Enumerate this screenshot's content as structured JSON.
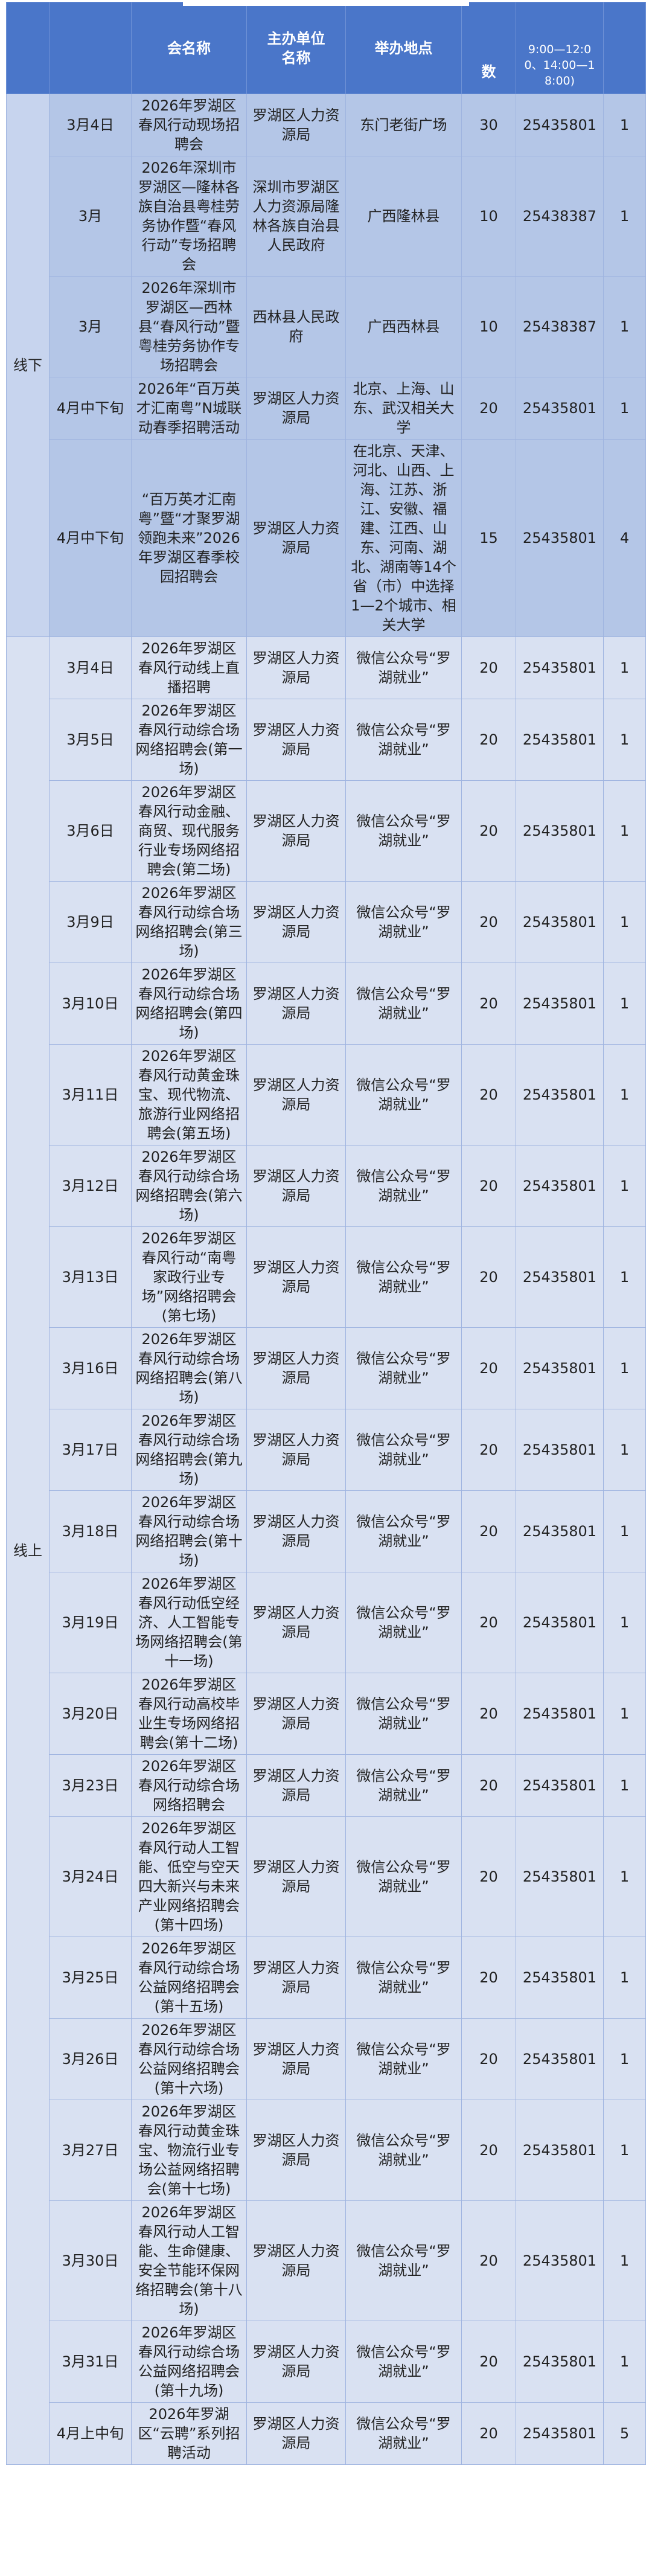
{
  "header": {
    "col_type": "",
    "col_date": "",
    "col_name": "会名称",
    "col_organizer": "主办单位名称",
    "col_location": "举办地点",
    "col_count": "数",
    "col_phone": "9:00—12:00、14:00—18:00)",
    "col_sessions": ""
  },
  "colors": {
    "header": "#4a76c9",
    "offline_bg": "#b4c6e7",
    "online_bg": "#d9e1f2"
  },
  "groups": [
    {
      "type": "线下",
      "rows": [
        {
          "date": "3月4日",
          "name": "2026年罗湖区春风行动现场招聘会",
          "organizer": "罗湖区人力资源局",
          "location": "东门老街广场",
          "count": "30",
          "phone": "25435801",
          "sessions": "1"
        },
        {
          "date": "3月",
          "name": "2026年深圳市罗湖区—隆林各族自治县粤桂劳务协作暨“春风行动”专场招聘会",
          "organizer": "深圳市罗湖区人力资源局隆林各族自治县人民政府",
          "location": "广西隆林县",
          "count": "10",
          "phone": "25438387",
          "sessions": "1"
        },
        {
          "date": "3月",
          "name": "2026年深圳市罗湖区—西林县“春风行动”暨粤桂劳务协作专场招聘会",
          "organizer": "西林县人民政府",
          "location": "广西西林县",
          "count": "10",
          "phone": "25438387",
          "sessions": "1"
        },
        {
          "date": "4月中下旬",
          "name": "2026年“百万英才汇南粤”N城联动春季招聘活动",
          "organizer": "罗湖区人力资源局",
          "location": "北京、上海、山东、武汉相关大学",
          "count": "20",
          "phone": "25435801",
          "sessions": "1"
        },
        {
          "date": "4月中下旬",
          "name": "“百万英才汇南粤”暨“才聚罗湖领跑未来”2026年罗湖区春季校园招聘会",
          "organizer": "罗湖区人力资源局",
          "location": "在北京、天津、河北、山西、上海、江苏、浙江、安徽、福建、江西、山东、河南、湖北、湖南等14个省（市）中选择1—2个城市、相关大学",
          "count": "15",
          "phone": "25435801",
          "sessions": "4"
        }
      ]
    },
    {
      "type": "线上",
      "rows": [
        {
          "date": "3月4日",
          "name": "2026年罗湖区春风行动线上直播招聘",
          "organizer": "罗湖区人力资源局",
          "location": "微信公众号“罗湖就业”",
          "count": "20",
          "phone": "25435801",
          "sessions": "1"
        },
        {
          "date": "3月5日",
          "name": "2026年罗湖区春风行动综合场网络招聘会(第一场)",
          "organizer": "罗湖区人力资源局",
          "location": "微信公众号“罗湖就业”",
          "count": "20",
          "phone": "25435801",
          "sessions": "1"
        },
        {
          "date": "3月6日",
          "name": "2026年罗湖区春风行动金融、商贸、现代服务行业专场网络招聘会(第二场)",
          "organizer": "罗湖区人力资源局",
          "location": "微信公众号“罗湖就业”",
          "count": "20",
          "phone": "25435801",
          "sessions": "1"
        },
        {
          "date": "3月9日",
          "name": "2026年罗湖区春风行动综合场网络招聘会(第三场)",
          "organizer": "罗湖区人力资源局",
          "location": "微信公众号“罗湖就业”",
          "count": "20",
          "phone": "25435801",
          "sessions": "1"
        },
        {
          "date": "3月10日",
          "name": "2026年罗湖区春风行动综合场网络招聘会(第四场)",
          "organizer": "罗湖区人力资源局",
          "location": "微信公众号“罗湖就业”",
          "count": "20",
          "phone": "25435801",
          "sessions": "1"
        },
        {
          "date": "3月11日",
          "name": "2026年罗湖区春风行动黄金珠宝、现代物流、旅游行业网络招聘会(第五场)",
          "organizer": "罗湖区人力资源局",
          "location": "微信公众号“罗湖就业”",
          "count": "20",
          "phone": "25435801",
          "sessions": "1"
        },
        {
          "date": "3月12日",
          "name": "2026年罗湖区春风行动综合场网络招聘会(第六场)",
          "organizer": "罗湖区人力资源局",
          "location": "微信公众号“罗湖就业”",
          "count": "20",
          "phone": "25435801",
          "sessions": "1"
        },
        {
          "date": "3月13日",
          "name": "2026年罗湖区春风行动“南粤家政行业专场”网络招聘会(第七场)",
          "organizer": "罗湖区人力资源局",
          "location": "微信公众号“罗湖就业”",
          "count": "20",
          "phone": "25435801",
          "sessions": "1"
        },
        {
          "date": "3月16日",
          "name": "2026年罗湖区春风行动综合场网络招聘会(第八场)",
          "organizer": "罗湖区人力资源局",
          "location": "微信公众号“罗湖就业”",
          "count": "20",
          "phone": "25435801",
          "sessions": "1"
        },
        {
          "date": "3月17日",
          "name": "2026年罗湖区春风行动综合场网络招聘会(第九场)",
          "organizer": "罗湖区人力资源局",
          "location": "微信公众号“罗湖就业”",
          "count": "20",
          "phone": "25435801",
          "sessions": "1"
        },
        {
          "date": "3月18日",
          "name": "2026年罗湖区春风行动综合场网络招聘会(第十场)",
          "organizer": "罗湖区人力资源局",
          "location": "微信公众号“罗湖就业”",
          "count": "20",
          "phone": "25435801",
          "sessions": "1"
        },
        {
          "date": "3月19日",
          "name": "2026年罗湖区春风行动低空经济、人工智能专场网络招聘会(第十一场)",
          "organizer": "罗湖区人力资源局",
          "location": "微信公众号“罗湖就业”",
          "count": "20",
          "phone": "25435801",
          "sessions": "1"
        },
        {
          "date": "3月20日",
          "name": "2026年罗湖区春风行动高校毕业生专场网络招聘会(第十二场)",
          "organizer": "罗湖区人力资源局",
          "location": "微信公众号“罗湖就业”",
          "count": "20",
          "phone": "25435801",
          "sessions": "1"
        },
        {
          "date": "3月23日",
          "name": "2026年罗湖区春风行动综合场网络招聘会",
          "organizer": "罗湖区人力资源局",
          "location": "微信公众号“罗湖就业”",
          "count": "20",
          "phone": "25435801",
          "sessions": "1"
        },
        {
          "date": "3月24日",
          "name": "2026年罗湖区春风行动人工智能、低空与空天四大新兴与未来产业网络招聘会(第十四场)",
          "organizer": "罗湖区人力资源局",
          "location": "微信公众号“罗湖就业”",
          "count": "20",
          "phone": "25435801",
          "sessions": "1"
        },
        {
          "date": "3月25日",
          "name": "2026年罗湖区春风行动综合场公益网络招聘会(第十五场)",
          "organizer": "罗湖区人力资源局",
          "location": "微信公众号“罗湖就业”",
          "count": "20",
          "phone": "25435801",
          "sessions": "1"
        },
        {
          "date": "3月26日",
          "name": "2026年罗湖区春风行动综合场公益网络招聘会(第十六场)",
          "organizer": "罗湖区人力资源局",
          "location": "微信公众号“罗湖就业”",
          "count": "20",
          "phone": "25435801",
          "sessions": "1"
        },
        {
          "date": "3月27日",
          "name": "2026年罗湖区春风行动黄金珠宝、物流行业专场公益网络招聘会(第十七场)",
          "organizer": "罗湖区人力资源局",
          "location": "微信公众号“罗湖就业”",
          "count": "20",
          "phone": "25435801",
          "sessions": "1"
        },
        {
          "date": "3月30日",
          "name": "2026年罗湖区春风行动人工智能、生命健康、安全节能环保网络招聘会(第十八场)",
          "organizer": "罗湖区人力资源局",
          "location": "微信公众号“罗湖就业”",
          "count": "20",
          "phone": "25435801",
          "sessions": "1"
        },
        {
          "date": "3月31日",
          "name": "2026年罗湖区春风行动综合场公益网络招聘会(第十九场)",
          "organizer": "罗湖区人力资源局",
          "location": "微信公众号“罗湖就业”",
          "count": "20",
          "phone": "25435801",
          "sessions": "1"
        },
        {
          "date": "4月上中旬",
          "name": "2026年罗湖区“云聘”系列招聘活动",
          "organizer": "罗湖区人力资源局",
          "location": "微信公众号“罗湖就业”",
          "count": "20",
          "phone": "25435801",
          "sessions": "5"
        }
      ]
    }
  ]
}
